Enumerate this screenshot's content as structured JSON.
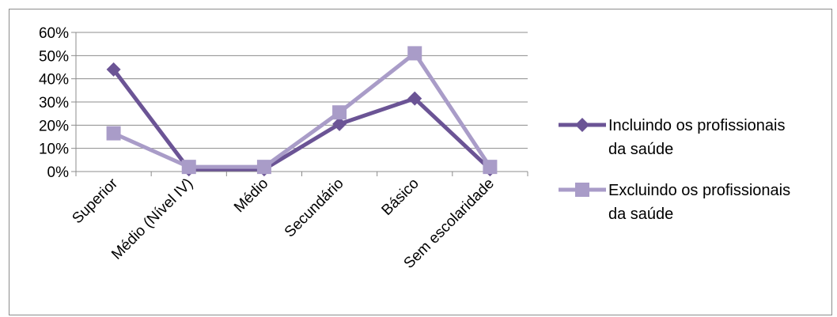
{
  "chart_data": {
    "type": "line",
    "categories": [
      "Superior",
      "Médio (Nível IV)",
      "Médio",
      "Secundário",
      "Básico",
      "Sem escolaridade"
    ],
    "y_tick_labels": [
      "0%",
      "10%",
      "20%",
      "30%",
      "40%",
      "50%",
      "60%"
    ],
    "ylim": [
      0,
      60
    ],
    "y_unit": "%",
    "grid": "horizontal",
    "legend_position": "right",
    "series": [
      {
        "name_line1": "Incluindo os profissionais",
        "name_line2": "da saúde",
        "values": [
          44,
          1,
          1,
          20.5,
          31.5,
          1
        ],
        "color": "#6B5495",
        "marker": "diamond"
      },
      {
        "name_line1": "Excluindo os profissionais",
        "name_line2": "da saúde",
        "values": [
          16.5,
          2,
          2,
          25.5,
          51,
          2
        ],
        "color": "#A99CC8",
        "marker": "square"
      }
    ]
  }
}
